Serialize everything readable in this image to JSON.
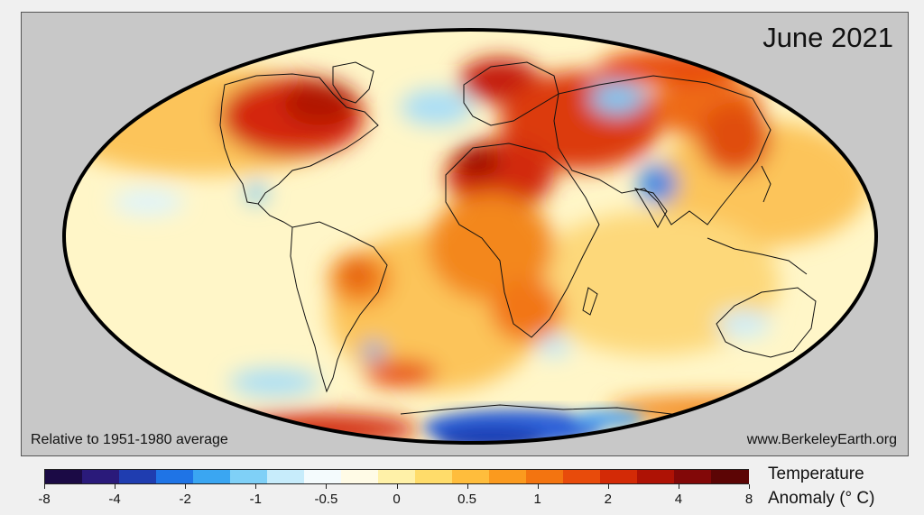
{
  "map": {
    "title": "June 2021",
    "note_left": "Relative to 1951-1980 average",
    "note_right": "www.BerkeleyEarth.org",
    "projection": "mollweide",
    "colors": {
      "background": "#c8c8c8",
      "outline": "#000000",
      "coastline": "#111111"
    }
  },
  "legend": {
    "title_line1": "Temperature",
    "title_line2": "Anomaly (° C)",
    "ticks": [
      "-8",
      "-4",
      "-2",
      "-1",
      "-0.5",
      "0",
      "0.5",
      "1",
      "2",
      "4",
      "8"
    ],
    "colors": [
      "#1b0a45",
      "#2a1a7a",
      "#1f3db0",
      "#1f74e6",
      "#3aa6f2",
      "#7fd0f7",
      "#c7ecfb",
      "#f4fbfd",
      "#fffbe6",
      "#fff1a8",
      "#ffdc6a",
      "#ffbd3c",
      "#fb9a1e",
      "#f37410",
      "#e84b0b",
      "#d32a06",
      "#ae1205",
      "#820808",
      "#5c0505"
    ]
  }
}
